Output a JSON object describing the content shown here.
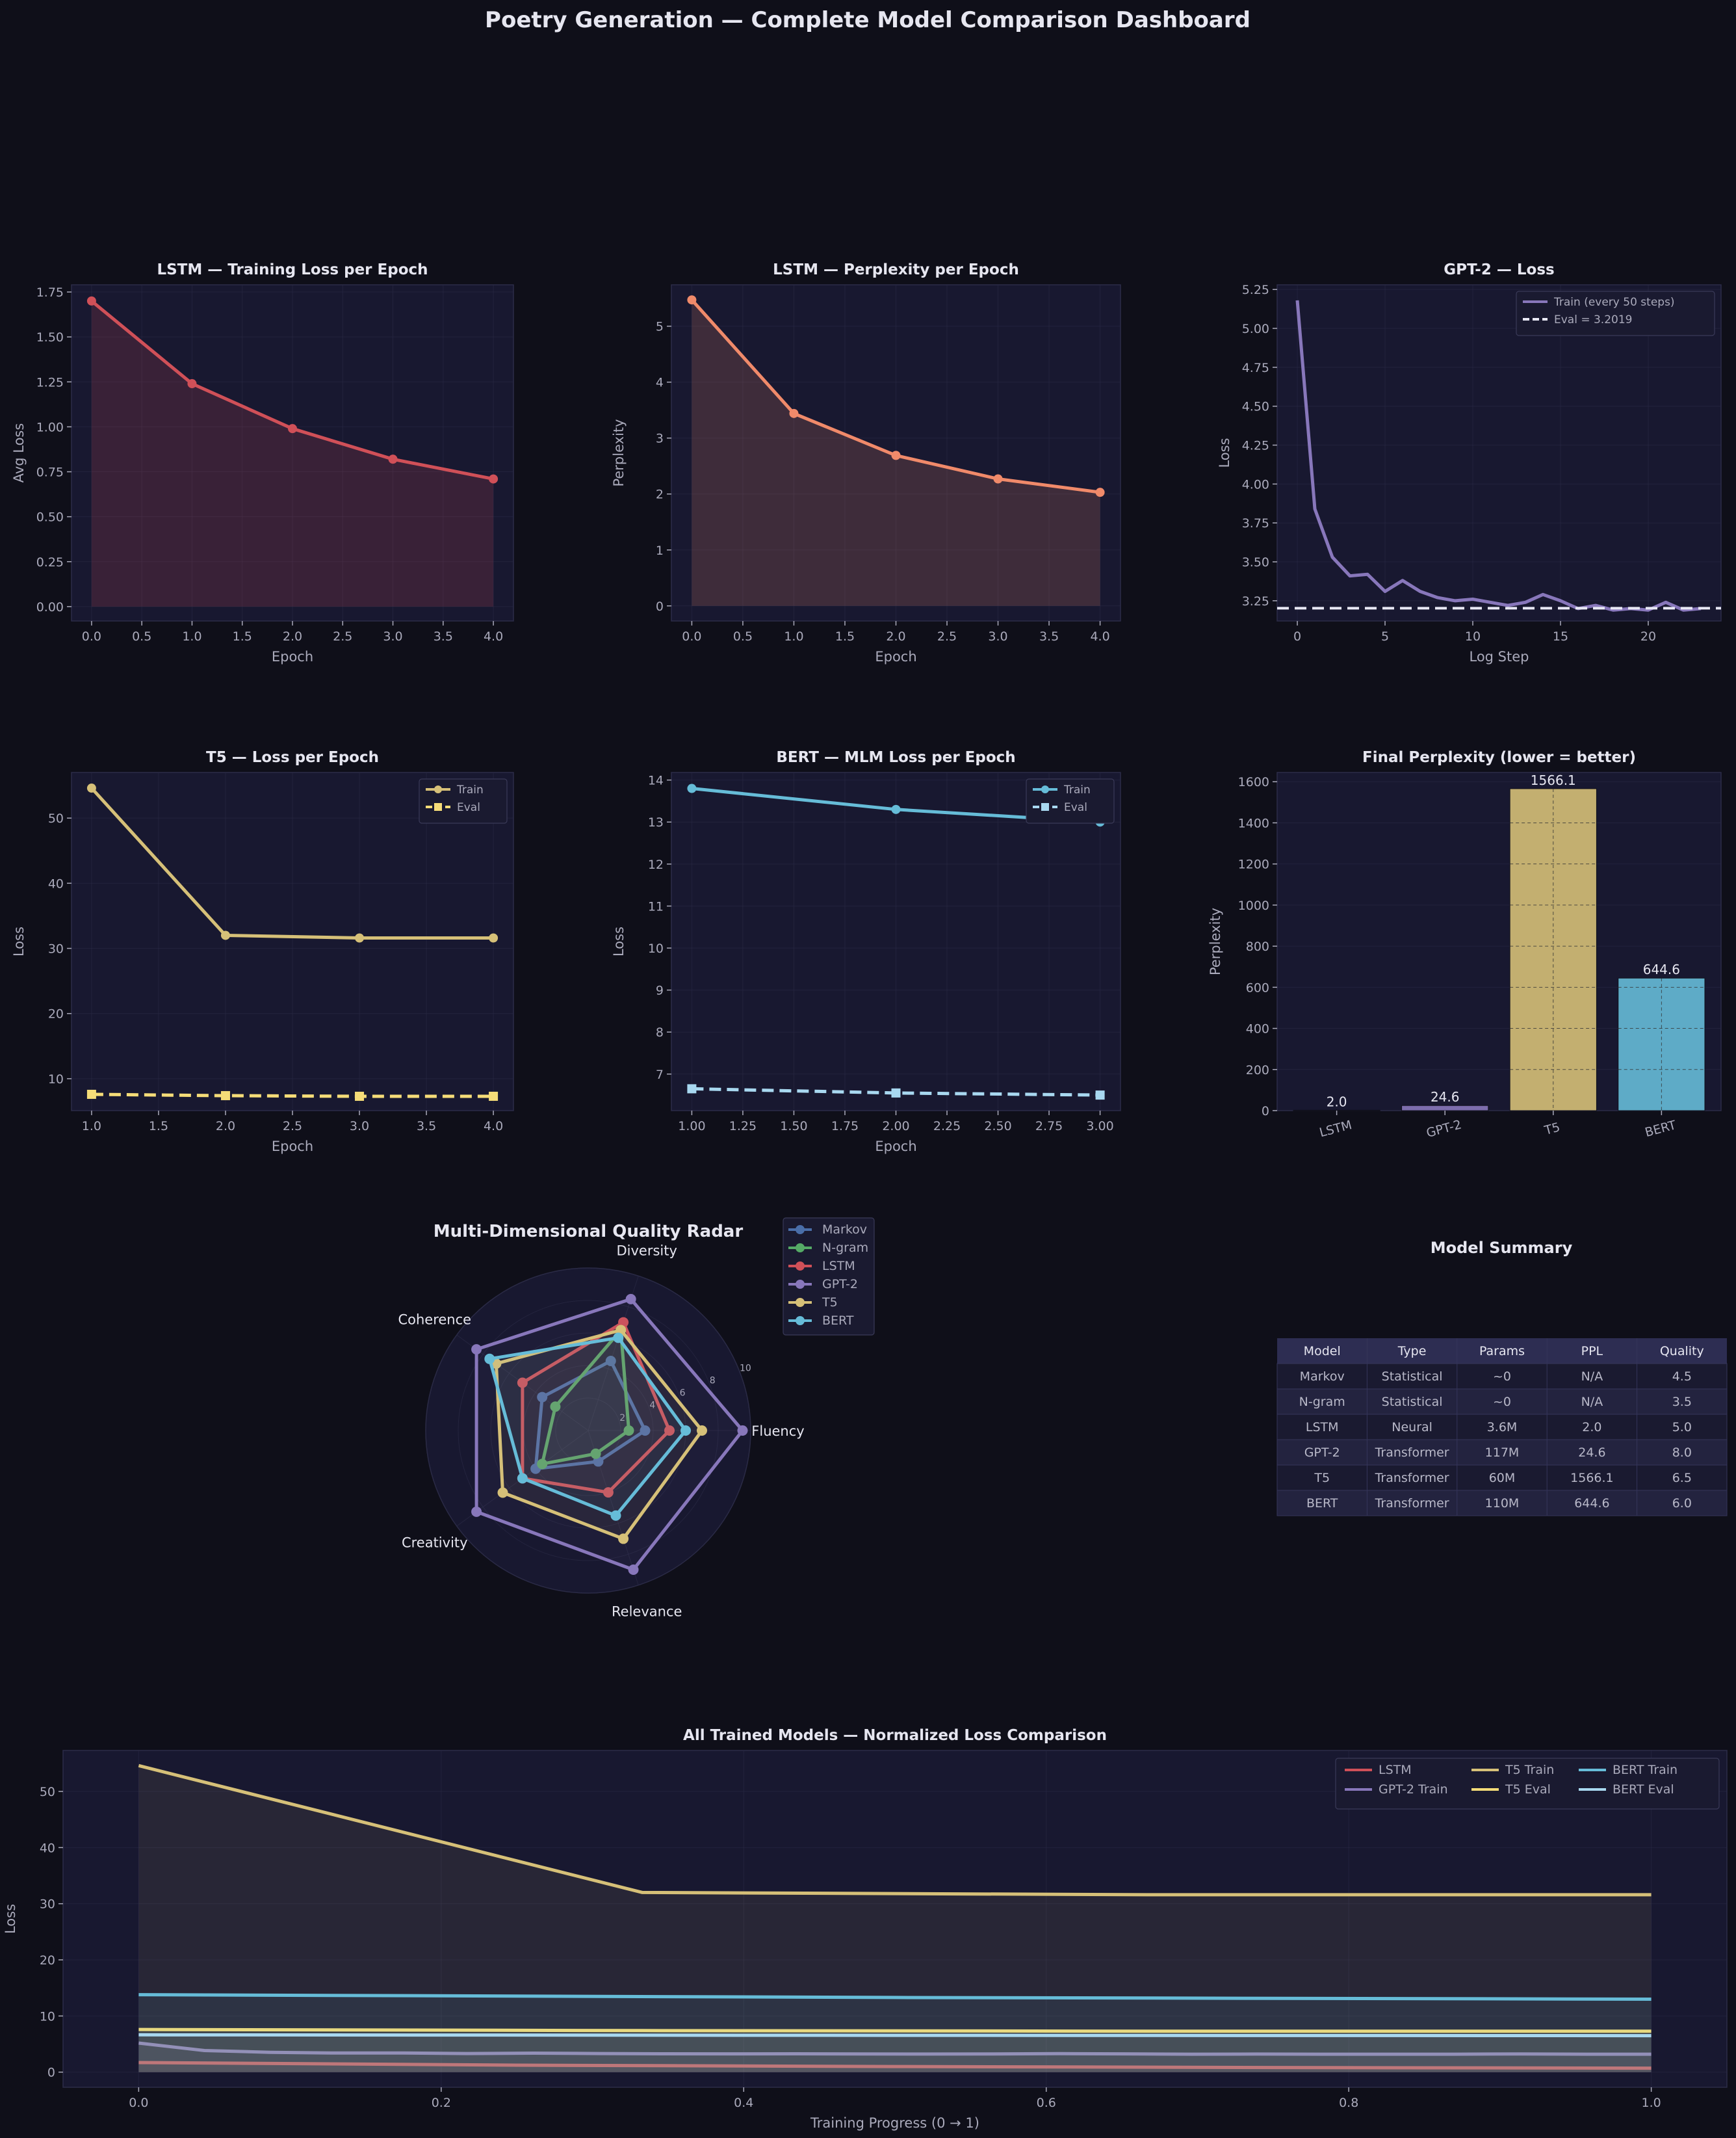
{
  "page": {
    "title": "Poetry Generation — Complete Model Comparison Dashboard"
  },
  "colors": {
    "bg": "#0f0f19",
    "panel": "#181830",
    "grid": "#2a2a45",
    "text": "#e6e6f0",
    "muted": "#aaaabb",
    "lstm": "#d05058",
    "lstm_ppl": "#f08a6a",
    "gpt2": "#8877bb",
    "t5": "#d6c078",
    "t5_eval": "#f5dc78",
    "bert": "#66bcd8",
    "bert_eval": "#a8d8f0",
    "markov": "#4a6ea8",
    "ngram": "#55aa66",
    "eval_line": "#e8e8f5"
  },
  "chart_data": [
    {
      "id": "lstm_loss",
      "type": "area",
      "title": "LSTM — Training Loss per Epoch",
      "xlabel": "Epoch",
      "ylabel": "Avg Loss",
      "xlim": [
        -0.2,
        4.2
      ],
      "ylim": [
        -0.08,
        1.79
      ],
      "xticks": [
        0.0,
        0.5,
        1.0,
        1.5,
        2.0,
        2.5,
        3.0,
        3.5,
        4.0
      ],
      "xticklabels": [
        "0.0",
        "0.5",
        "1.0",
        "1.5",
        "2.0",
        "2.5",
        "3.0",
        "3.5",
        "4.0"
      ],
      "yticks": [
        0.0,
        0.25,
        0.5,
        0.75,
        1.0,
        1.25,
        1.5,
        1.75
      ],
      "yticklabels": [
        "0.00",
        "0.25",
        "0.50",
        "0.75",
        "1.00",
        "1.25",
        "1.50",
        "1.75"
      ],
      "grid": true,
      "series": [
        {
          "x": [
            0,
            1,
            2,
            3,
            4
          ],
          "y": [
            1.7,
            1.24,
            0.99,
            0.82,
            0.71
          ],
          "color": "#d05058",
          "marker": "circle",
          "fill": true
        }
      ]
    },
    {
      "id": "lstm_ppl",
      "type": "area",
      "title": "LSTM — Perplexity per Epoch",
      "xlabel": "Epoch",
      "ylabel": "Perplexity",
      "xlim": [
        -0.2,
        4.2
      ],
      "ylim": [
        -0.27,
        5.74
      ],
      "xticks": [
        0.0,
        0.5,
        1.0,
        1.5,
        2.0,
        2.5,
        3.0,
        3.5,
        4.0
      ],
      "xticklabels": [
        "0.0",
        "0.5",
        "1.0",
        "1.5",
        "2.0",
        "2.5",
        "3.0",
        "3.5",
        "4.0"
      ],
      "yticks": [
        0,
        1,
        2,
        3,
        4,
        5
      ],
      "yticklabels": [
        "0",
        "1",
        "2",
        "3",
        "4",
        "5"
      ],
      "grid": true,
      "series": [
        {
          "x": [
            0,
            1,
            2,
            3,
            4
          ],
          "y": [
            5.47,
            3.44,
            2.69,
            2.27,
            2.03
          ],
          "color": "#f08a6a",
          "marker": "circle",
          "fill": true
        }
      ]
    },
    {
      "id": "gpt2_loss",
      "type": "line",
      "title": "GPT-2 — Loss",
      "xlabel": "Log Step",
      "ylabel": "Loss",
      "xlim": [
        -1.15,
        24.15
      ],
      "ylim": [
        3.12,
        5.28
      ],
      "xticks": [
        0,
        5,
        10,
        15,
        20
      ],
      "xticklabels": [
        "0",
        "5",
        "10",
        "15",
        "20"
      ],
      "yticks": [
        3.25,
        3.5,
        3.75,
        4.0,
        4.25,
        4.5,
        4.75,
        5.0,
        5.25
      ],
      "yticklabels": [
        "3.25",
        "3.50",
        "3.75",
        "4.00",
        "4.25",
        "4.50",
        "4.75",
        "5.00",
        "5.25"
      ],
      "grid": true,
      "legend_position": "top-right",
      "series": [
        {
          "name": "Train (every 50 steps)",
          "x": [
            0,
            1,
            2,
            3,
            4,
            5,
            6,
            7,
            8,
            9,
            10,
            11,
            12,
            13,
            14,
            15,
            16,
            17,
            18,
            19,
            20,
            21,
            22,
            23
          ],
          "y": [
            5.18,
            3.84,
            3.53,
            3.41,
            3.42,
            3.31,
            3.38,
            3.31,
            3.27,
            3.25,
            3.26,
            3.24,
            3.22,
            3.24,
            3.29,
            3.25,
            3.2,
            3.22,
            3.19,
            3.2,
            3.19,
            3.24,
            3.19,
            3.2
          ],
          "color": "#8877bb"
        }
      ],
      "hlines": [
        {
          "name": "Eval = 3.2019",
          "y": 3.2019,
          "color": "#e8e8f5",
          "dash": true
        }
      ]
    },
    {
      "id": "t5_loss",
      "type": "line",
      "title": "T5 — Loss per Epoch",
      "xlabel": "Epoch",
      "ylabel": "Loss",
      "xlim": [
        0.85,
        4.15
      ],
      "ylim": [
        5.1,
        57.0
      ],
      "xticks": [
        1.0,
        1.5,
        2.0,
        2.5,
        3.0,
        3.5,
        4.0
      ],
      "xticklabels": [
        "1.0",
        "1.5",
        "2.0",
        "2.5",
        "3.0",
        "3.5",
        "4.0"
      ],
      "yticks": [
        10,
        20,
        30,
        40,
        50
      ],
      "yticklabels": [
        "10",
        "20",
        "30",
        "40",
        "50"
      ],
      "grid": true,
      "legend_position": "top-right",
      "series": [
        {
          "name": "Train",
          "x": [
            1,
            2,
            3,
            4
          ],
          "y": [
            54.6,
            32.0,
            31.6,
            31.6
          ],
          "color": "#d6c078",
          "marker": "circle"
        },
        {
          "name": "Eval",
          "x": [
            1,
            2,
            3,
            4
          ],
          "y": [
            7.6,
            7.4,
            7.3,
            7.3
          ],
          "color": "#f5dc78",
          "marker": "square",
          "dash": true
        }
      ]
    },
    {
      "id": "bert_loss",
      "type": "line",
      "title": "BERT — MLM Loss per Epoch",
      "xlabel": "Epoch",
      "ylabel": "Loss",
      "xlim": [
        0.9,
        3.1
      ],
      "ylim": [
        6.13,
        14.18
      ],
      "xticks": [
        1.0,
        1.25,
        1.5,
        1.75,
        2.0,
        2.25,
        2.5,
        2.75,
        3.0
      ],
      "xticklabels": [
        "1.00",
        "1.25",
        "1.50",
        "1.75",
        "2.00",
        "2.25",
        "2.50",
        "2.75",
        "3.00"
      ],
      "yticks": [
        7,
        8,
        9,
        10,
        11,
        12,
        13,
        14
      ],
      "yticklabels": [
        "7",
        "8",
        "9",
        "10",
        "11",
        "12",
        "13",
        "14"
      ],
      "grid": true,
      "legend_position": "top-right",
      "series": [
        {
          "name": "Train",
          "x": [
            1,
            2,
            3
          ],
          "y": [
            13.8,
            13.3,
            13.0
          ],
          "color": "#66bcd8",
          "marker": "circle"
        },
        {
          "name": "Eval",
          "x": [
            1,
            2,
            3
          ],
          "y": [
            6.65,
            6.55,
            6.5
          ],
          "color": "#a8d8f0",
          "marker": "square",
          "dash": true
        }
      ]
    },
    {
      "id": "final_ppl",
      "type": "bar",
      "title": "Final Perplexity (lower = better)",
      "xlabel": "",
      "ylabel": "Perplexity",
      "ylim": [
        0,
        1645
      ],
      "yticks": [
        0,
        200,
        400,
        600,
        800,
        1000,
        1200,
        1400,
        1600
      ],
      "yticklabels": [
        "0",
        "200",
        "400",
        "600",
        "800",
        "1000",
        "1200",
        "1400",
        "1600"
      ],
      "grid": true,
      "categories": [
        "LSTM",
        "GPT-2",
        "T5",
        "BERT"
      ],
      "values": [
        2.0,
        24.6,
        1566.1,
        644.6
      ],
      "value_labels": [
        "2.0",
        "24.6",
        "1566.1",
        "644.6"
      ],
      "bar_colors": [
        "#d05058",
        "#8877bb",
        "#d6c078",
        "#66bcd8"
      ]
    },
    {
      "id": "radar",
      "type": "radar",
      "title": "Multi-Dimensional Quality Radar",
      "axes": [
        "Fluency",
        "Diversity",
        "Coherence",
        "Creativity",
        "Relevance"
      ],
      "rmax": 10,
      "rticks": [
        2,
        4,
        6,
        8,
        10
      ],
      "rticklabels": [
        "2",
        "4",
        "6",
        "8",
        "10"
      ],
      "legend_position": "outside-right",
      "series": [
        {
          "name": "Markov",
          "values": [
            3.5,
            4.5,
            3.5,
            4.0,
            2.0
          ],
          "color": "#4a6ea8"
        },
        {
          "name": "N-gram",
          "values": [
            2.5,
            6.5,
            2.5,
            3.5,
            1.5
          ],
          "color": "#55aa66"
        },
        {
          "name": "LSTM",
          "values": [
            5.0,
            7.0,
            5.0,
            5.0,
            4.0
          ],
          "color": "#d05058"
        },
        {
          "name": "GPT-2",
          "values": [
            9.5,
            8.5,
            8.5,
            8.5,
            9.0
          ],
          "color": "#8877bb"
        },
        {
          "name": "T5",
          "values": [
            7.0,
            6.5,
            7.0,
            6.5,
            7.0
          ],
          "color": "#d6c078"
        },
        {
          "name": "BERT",
          "values": [
            6.0,
            6.0,
            7.5,
            5.0,
            5.5
          ],
          "color": "#66bcd8"
        }
      ]
    },
    {
      "id": "norm_loss",
      "type": "area",
      "title": "All Trained Models — Normalized Loss Comparison",
      "xlabel": "Training Progress (0 → 1)",
      "ylabel": "Loss",
      "xlim": [
        -0.05,
        1.05
      ],
      "ylim": [
        -2.7,
        57.3
      ],
      "xticks": [
        0.0,
        0.2,
        0.4,
        0.6,
        0.8,
        1.0
      ],
      "xticklabels": [
        "0.0",
        "0.2",
        "0.4",
        "0.6",
        "0.8",
        "1.0"
      ],
      "yticks": [
        0,
        10,
        20,
        30,
        40,
        50
      ],
      "yticklabels": [
        "0",
        "10",
        "20",
        "30",
        "40",
        "50"
      ],
      "grid": true,
      "legend_position": "top-right",
      "series": [
        {
          "name": "LSTM",
          "x": [
            0,
            0.25,
            0.5,
            0.75,
            1
          ],
          "y": [
            1.7,
            1.24,
            0.99,
            0.82,
            0.71
          ],
          "color": "#d05058",
          "fill": true
        },
        {
          "name": "GPT-2 Train",
          "x": [
            0,
            0.0435,
            0.087,
            0.13,
            0.174,
            0.217,
            0.261,
            0.304,
            0.348,
            0.391,
            0.435,
            0.478,
            0.522,
            0.565,
            0.609,
            0.652,
            0.696,
            0.739,
            0.783,
            0.826,
            0.87,
            0.913,
            0.957,
            1.0
          ],
          "y": [
            5.18,
            3.84,
            3.53,
            3.41,
            3.42,
            3.31,
            3.38,
            3.31,
            3.27,
            3.25,
            3.26,
            3.24,
            3.22,
            3.24,
            3.29,
            3.25,
            3.2,
            3.22,
            3.19,
            3.2,
            3.19,
            3.24,
            3.19,
            3.2
          ],
          "color": "#8877bb",
          "fill": true
        },
        {
          "name": "T5 Train",
          "x": [
            0,
            0.333,
            0.667,
            1
          ],
          "y": [
            54.6,
            32.0,
            31.6,
            31.6
          ],
          "color": "#d6c078",
          "fill": true
        },
        {
          "name": "T5 Eval",
          "x": [
            0,
            0.333,
            0.667,
            1
          ],
          "y": [
            7.6,
            7.4,
            7.3,
            7.3
          ],
          "color": "#f5dc78",
          "fill": true
        },
        {
          "name": "BERT Train",
          "x": [
            0,
            0.5,
            1
          ],
          "y": [
            13.8,
            13.3,
            13.0
          ],
          "color": "#66bcd8",
          "fill": true
        },
        {
          "name": "BERT Eval",
          "x": [
            0,
            0.5,
            1
          ],
          "y": [
            6.65,
            6.55,
            6.5
          ],
          "color": "#a8d8f0",
          "fill": true
        }
      ]
    },
    {
      "id": "summary",
      "type": "table",
      "title": "Model Summary",
      "columns": [
        "Model",
        "Type",
        "Params",
        "PPL",
        "Quality"
      ],
      "rows": [
        [
          "Markov",
          "Statistical",
          "~0",
          "N/A",
          "4.5"
        ],
        [
          "N-gram",
          "Statistical",
          "~0",
          "N/A",
          "3.5"
        ],
        [
          "LSTM",
          "Neural",
          "3.6M",
          "2.0",
          "5.0"
        ],
        [
          "GPT-2",
          "Transformer",
          "117M",
          "24.6",
          "8.0"
        ],
        [
          "T5",
          "Transformer",
          "60M",
          "1566.1",
          "6.5"
        ],
        [
          "BERT",
          "Transformer",
          "110M",
          "644.6",
          "6.0"
        ]
      ]
    }
  ]
}
